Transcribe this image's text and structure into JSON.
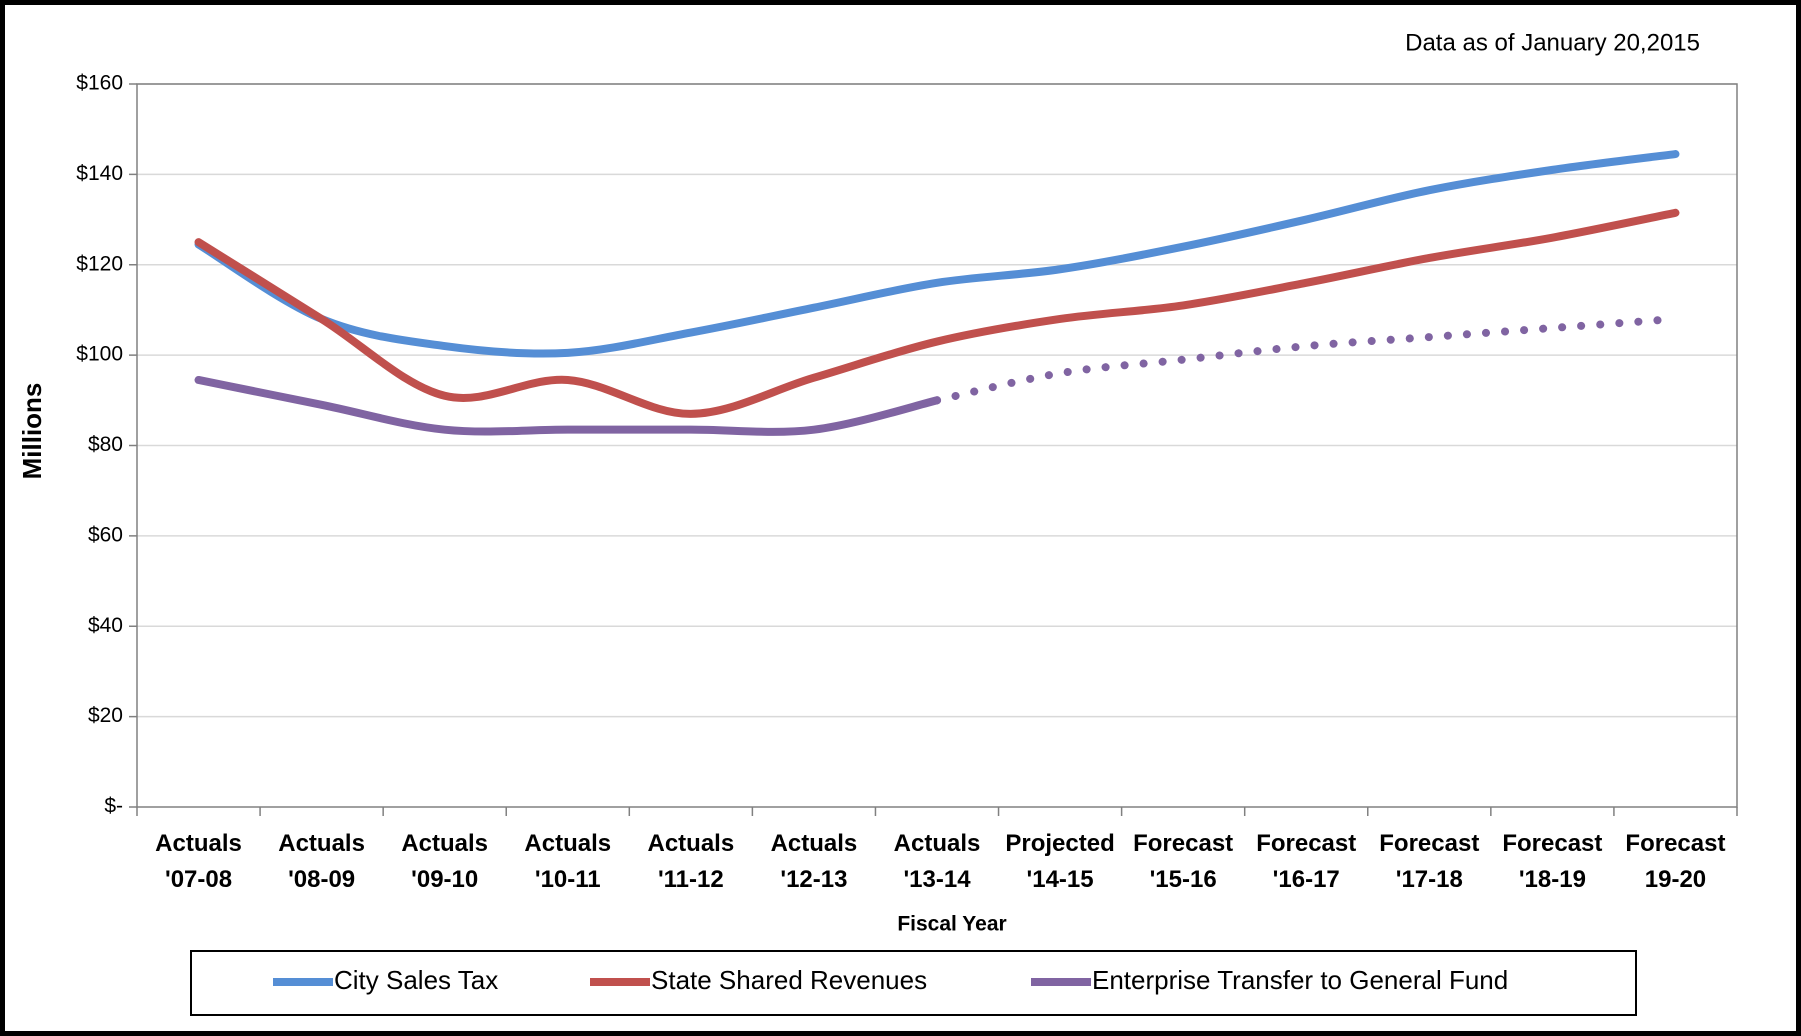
{
  "chart_data": {
    "type": "line",
    "annotation": "Data as of January 20,2015",
    "xlabel": "Fiscal Year",
    "ylabel": "Millions",
    "categories": [
      "Actuals\n'07-08",
      "Actuals\n'08-09",
      "Actuals\n'09-10",
      "Actuals\n'10-11",
      "Actuals\n'11-12",
      "Actuals\n'12-13",
      "Actuals\n'13-14",
      "Projected\n'14-15",
      "Forecast\n'15-16",
      "Forecast\n'16-17",
      "Forecast\n'17-18",
      "Forecast\n'18-19",
      "Forecast\n19-20"
    ],
    "series": [
      {
        "name": "City Sales Tax",
        "color": "#558ed5",
        "values": [
          124.5,
          108,
          102,
          100.5,
          105,
          110.5,
          116,
          119,
          124,
          130,
          136.5,
          141,
          144.5
        ]
      },
      {
        "name": "State Shared Revenues",
        "color": "#c0504d",
        "values": [
          125,
          108,
          91,
          94.5,
          87,
          95,
          103,
          108,
          111,
          116,
          121.5,
          126,
          131.5
        ]
      },
      {
        "name": "Enterprise Transfer to General Fund",
        "color": "#8064a2",
        "values": [
          94.5,
          89,
          83.5,
          83.5,
          83.5,
          83.5,
          90,
          96,
          99,
          102,
          104,
          106,
          108
        ],
        "dotted_from": 6
      }
    ],
    "ylim": [
      0,
      160
    ],
    "yticks": [
      {
        "value": 0,
        "label": "$-"
      },
      {
        "value": 20,
        "label": "$20"
      },
      {
        "value": 40,
        "label": "$40"
      },
      {
        "value": 60,
        "label": "$60"
      },
      {
        "value": 80,
        "label": "$80"
      },
      {
        "value": 100,
        "label": "$100"
      },
      {
        "value": 120,
        "label": "$120"
      },
      {
        "value": 140,
        "label": "$140"
      },
      {
        "value": 160,
        "label": "$160"
      }
    ],
    "grid": true,
    "legend": "bottom"
  }
}
